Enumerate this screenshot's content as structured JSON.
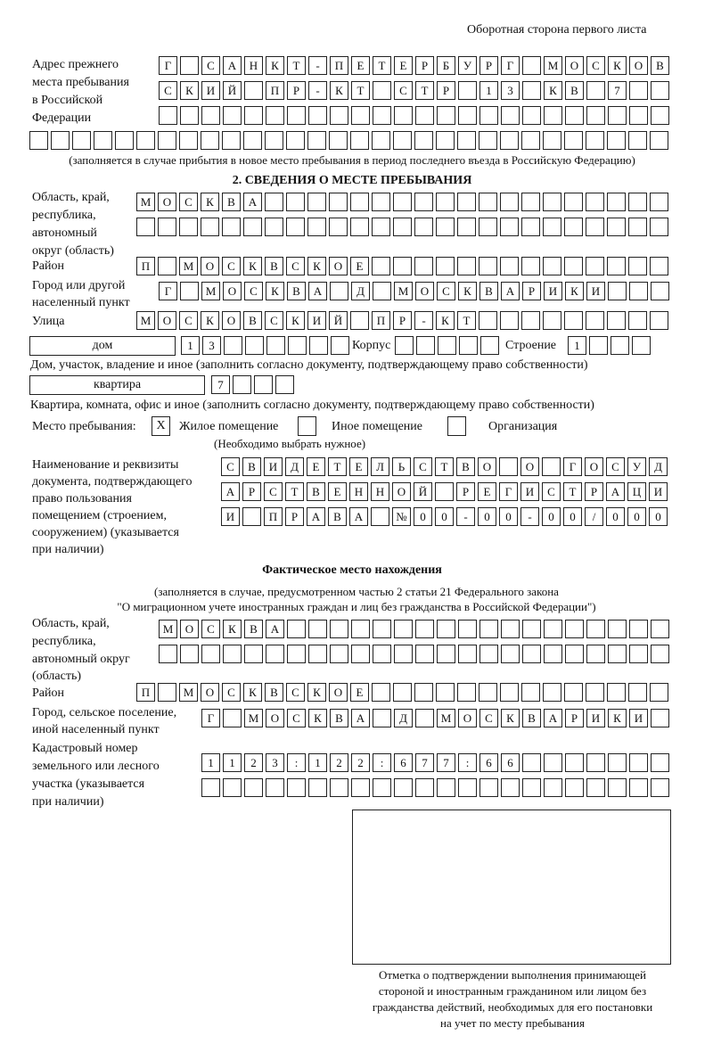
{
  "header": "Оборотная сторона первого листа",
  "prev_address": {
    "label": "Адрес прежнего места пребывания в Российской Федерации",
    "label_lines": [
      "Адрес прежнего",
      "места пребывания",
      "в Российской",
      "Федерации"
    ],
    "rows": [
      "Г САНКТ-ПЕТЕРБУРГ МОСКОВ",
      "СКИЙ ПР-КТ СТР 13 КВ 7  ",
      "                        ",
      "                              "
    ],
    "note": "(заполняется в случае прибытия в новое место пребывания в период последнего въезда в Российскую Федерацию)"
  },
  "section2": {
    "title": "2. СВЕДЕНИЯ О МЕСТЕ ПРЕБЫВАНИЯ",
    "region_label": [
      "Область, край,",
      "республика,",
      "автономный",
      "округ (область)"
    ],
    "region_rows": [
      "МОСКВА                   ",
      "                         "
    ],
    "district_label": "Район",
    "district": "П МОСКВСКОЕ              ",
    "city_label": [
      "Город или другой",
      "населенный пункт"
    ],
    "city": "Г МОСКВА Д МОСКВАРИКИ   ",
    "street_label": "Улица",
    "street": "МОСКОВСКИЙ ПР-КТ         ",
    "house_type": "дом",
    "house": "13      ",
    "korpus_label": "Корпус",
    "korpus": "     ",
    "stroenie_label": "Строение",
    "stroenie": "1   ",
    "house_note": "Дом, участок, владение и иное (заполнить согласно документу, подтверждающему право собственности)",
    "flat_type": "квартира",
    "flat": "7   ",
    "flat_note": "Квартира, комната, офис и иное (заполнить согласно документу, подтверждающему право собственности)",
    "place_label": "Место пребывания:",
    "options": [
      {
        "mark": "X",
        "label": "Жилое помещение"
      },
      {
        "mark": "",
        "label": "Иное помещение"
      },
      {
        "mark": "",
        "label": "Организация"
      }
    ],
    "choose_note": "(Необходимо выбрать нужное)",
    "doc_label": [
      "Наименование и реквизиты",
      "документа, подтверждающего",
      "право пользования",
      "помещением (строением,",
      "сооружением) (указывается",
      "при наличии)"
    ],
    "doc_rows": [
      "СВИДЕТЕЛЬСТВО О ГОСУД",
      "АРСТВЕННОЙ РЕГИСТРАЦИ",
      "И ПРАВА №00-00-00/000"
    ]
  },
  "actual": {
    "title": "Фактическое место нахождения",
    "note1": "(заполняется в случае, предусмотренном частью 2 статьи 21 Федерального закона",
    "note2": "\"О миграционном учете иностранных граждан и лиц без гражданства в Российской Федерации\")",
    "region_label": [
      "Область, край,",
      "республика,",
      "автономный округ",
      "(область)"
    ],
    "region_rows": [
      "МОСКВА                  ",
      "                        "
    ],
    "district_label": "Район",
    "district": "П МОСКВСКОЕ              ",
    "city_label": [
      "Город, сельское поселение,",
      "иной населенный пункт"
    ],
    "city": "Г МОСКВА Д МОСКВАРИКИ ",
    "cadastral_label": [
      "Кадастровый номер",
      "земельного или лесного",
      "участка (указывается",
      "при наличии)"
    ],
    "cadastral_rows": [
      "1123:122:677:66       ",
      "                      "
    ]
  },
  "stamp_caption": [
    "Отметка о подтверждении выполнения принимающей",
    "стороной и иностранным гражданином или лицом без",
    "гражданства действий, необходимых для его постановки",
    "на учет по месту пребывания"
  ]
}
